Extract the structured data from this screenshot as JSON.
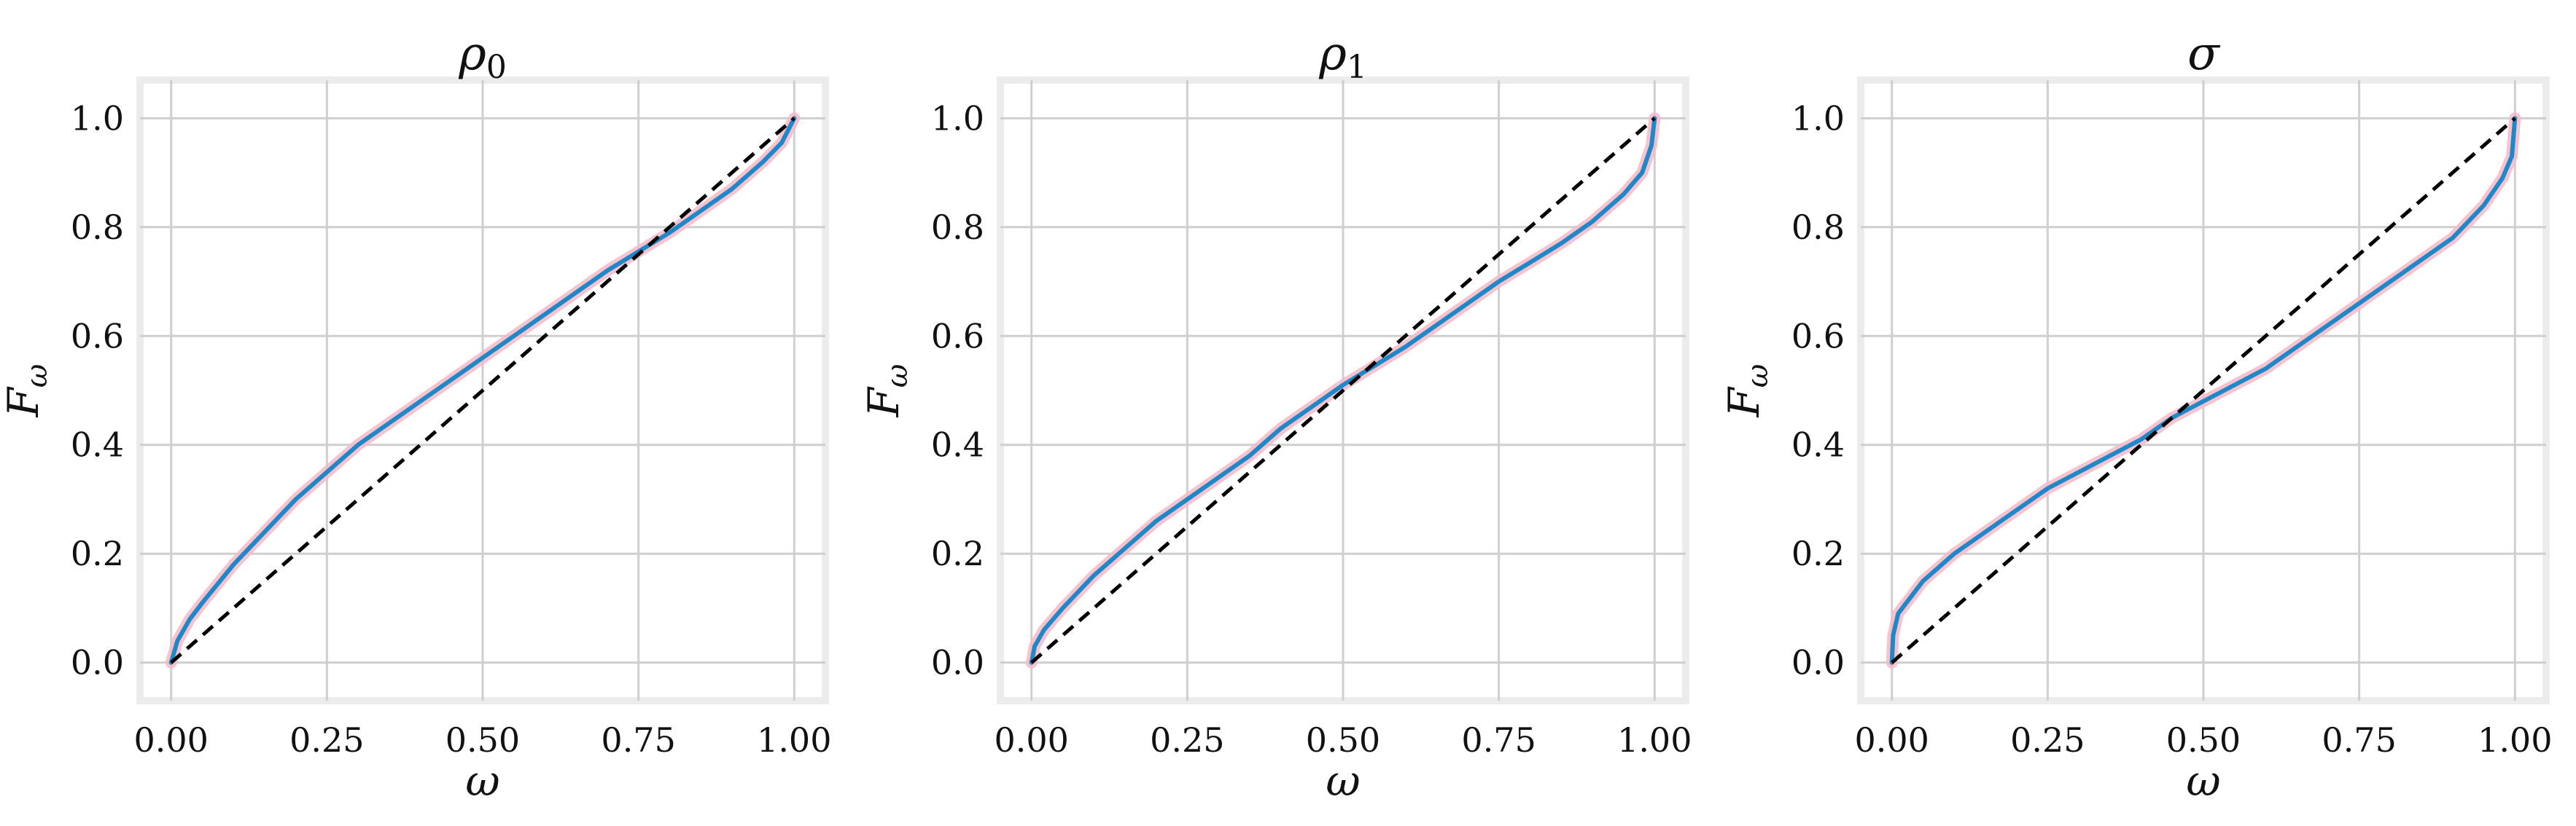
{
  "figure": {
    "colors": {
      "main_line": "#1f88c9",
      "band": "#f4b8c6",
      "reference": "#000000",
      "grid": "#cfcfcf",
      "frame": "#ececec"
    }
  },
  "chart_data": [
    {
      "type": "line",
      "title": "ρ0",
      "xlabel": "ω",
      "ylabel": "Fω",
      "xlim": [
        -0.05,
        1.05
      ],
      "ylim": [
        -0.07,
        1.07
      ],
      "xticks": [
        0.0,
        0.25,
        0.5,
        0.75,
        1.0
      ],
      "xtick_labels": [
        "0.00",
        "0.25",
        "0.50",
        "0.75",
        "1.00"
      ],
      "yticks": [
        0.0,
        0.2,
        0.4,
        0.6,
        0.8,
        1.0
      ],
      "ytick_labels": [
        "0.0",
        "0.2",
        "0.4",
        "0.6",
        "0.8",
        "1.0"
      ],
      "grid": true,
      "series": [
        {
          "role": "estimate",
          "x": [
            0,
            0.01,
            0.03,
            0.05,
            0.1,
            0.15,
            0.2,
            0.25,
            0.3,
            0.35,
            0.4,
            0.45,
            0.5,
            0.55,
            0.6,
            0.65,
            0.7,
            0.75,
            0.8,
            0.85,
            0.9,
            0.95,
            0.98,
            1.0
          ],
          "y": [
            0,
            0.04,
            0.08,
            0.11,
            0.18,
            0.24,
            0.3,
            0.35,
            0.4,
            0.44,
            0.48,
            0.52,
            0.56,
            0.6,
            0.64,
            0.68,
            0.72,
            0.755,
            0.79,
            0.83,
            0.87,
            0.92,
            0.955,
            1.0
          ]
        },
        {
          "role": "reference",
          "x": [
            0,
            1
          ],
          "y": [
            0,
            1
          ]
        }
      ]
    },
    {
      "type": "line",
      "title": "ρ1",
      "xlabel": "ω",
      "ylabel": "Fω",
      "xlim": [
        -0.05,
        1.05
      ],
      "ylim": [
        -0.07,
        1.07
      ],
      "xticks": [
        0.0,
        0.25,
        0.5,
        0.75,
        1.0
      ],
      "xtick_labels": [
        "0.00",
        "0.25",
        "0.50",
        "0.75",
        "1.00"
      ],
      "yticks": [
        0.0,
        0.2,
        0.4,
        0.6,
        0.8,
        1.0
      ],
      "ytick_labels": [
        "0.0",
        "0.2",
        "0.4",
        "0.6",
        "0.8",
        "1.0"
      ],
      "grid": true,
      "series": [
        {
          "role": "estimate",
          "x": [
            0,
            0.005,
            0.02,
            0.05,
            0.1,
            0.15,
            0.2,
            0.25,
            0.3,
            0.35,
            0.4,
            0.45,
            0.5,
            0.55,
            0.6,
            0.65,
            0.7,
            0.75,
            0.8,
            0.85,
            0.9,
            0.95,
            0.98,
            0.995,
            1.0
          ],
          "y": [
            0,
            0.03,
            0.06,
            0.1,
            0.16,
            0.21,
            0.26,
            0.3,
            0.34,
            0.38,
            0.43,
            0.47,
            0.51,
            0.545,
            0.58,
            0.62,
            0.66,
            0.7,
            0.735,
            0.77,
            0.81,
            0.86,
            0.9,
            0.95,
            1.0
          ]
        },
        {
          "role": "reference",
          "x": [
            0,
            1
          ],
          "y": [
            0,
            1
          ]
        }
      ]
    },
    {
      "type": "line",
      "title": "σ",
      "xlabel": "ω",
      "ylabel": "Fω",
      "xlim": [
        -0.05,
        1.05
      ],
      "ylim": [
        -0.07,
        1.07
      ],
      "xticks": [
        0.0,
        0.25,
        0.5,
        0.75,
        1.0
      ],
      "xtick_labels": [
        "0.00",
        "0.25",
        "0.50",
        "0.75",
        "1.00"
      ],
      "yticks": [
        0.0,
        0.2,
        0.4,
        0.6,
        0.8,
        1.0
      ],
      "ytick_labels": [
        "0.0",
        "0.2",
        "0.4",
        "0.6",
        "0.8",
        "1.0"
      ],
      "grid": true,
      "series": [
        {
          "role": "estimate",
          "x": [
            0,
            0.002,
            0.01,
            0.03,
            0.05,
            0.1,
            0.15,
            0.2,
            0.25,
            0.3,
            0.35,
            0.4,
            0.45,
            0.5,
            0.55,
            0.6,
            0.65,
            0.7,
            0.75,
            0.8,
            0.85,
            0.9,
            0.95,
            0.98,
            0.995,
            1.0
          ],
          "y": [
            0,
            0.05,
            0.09,
            0.12,
            0.15,
            0.2,
            0.24,
            0.28,
            0.32,
            0.35,
            0.38,
            0.41,
            0.45,
            0.48,
            0.51,
            0.54,
            0.58,
            0.62,
            0.66,
            0.7,
            0.74,
            0.78,
            0.84,
            0.89,
            0.93,
            1.0
          ]
        },
        {
          "role": "reference",
          "x": [
            0,
            1
          ],
          "y": [
            0,
            1
          ]
        }
      ]
    }
  ]
}
